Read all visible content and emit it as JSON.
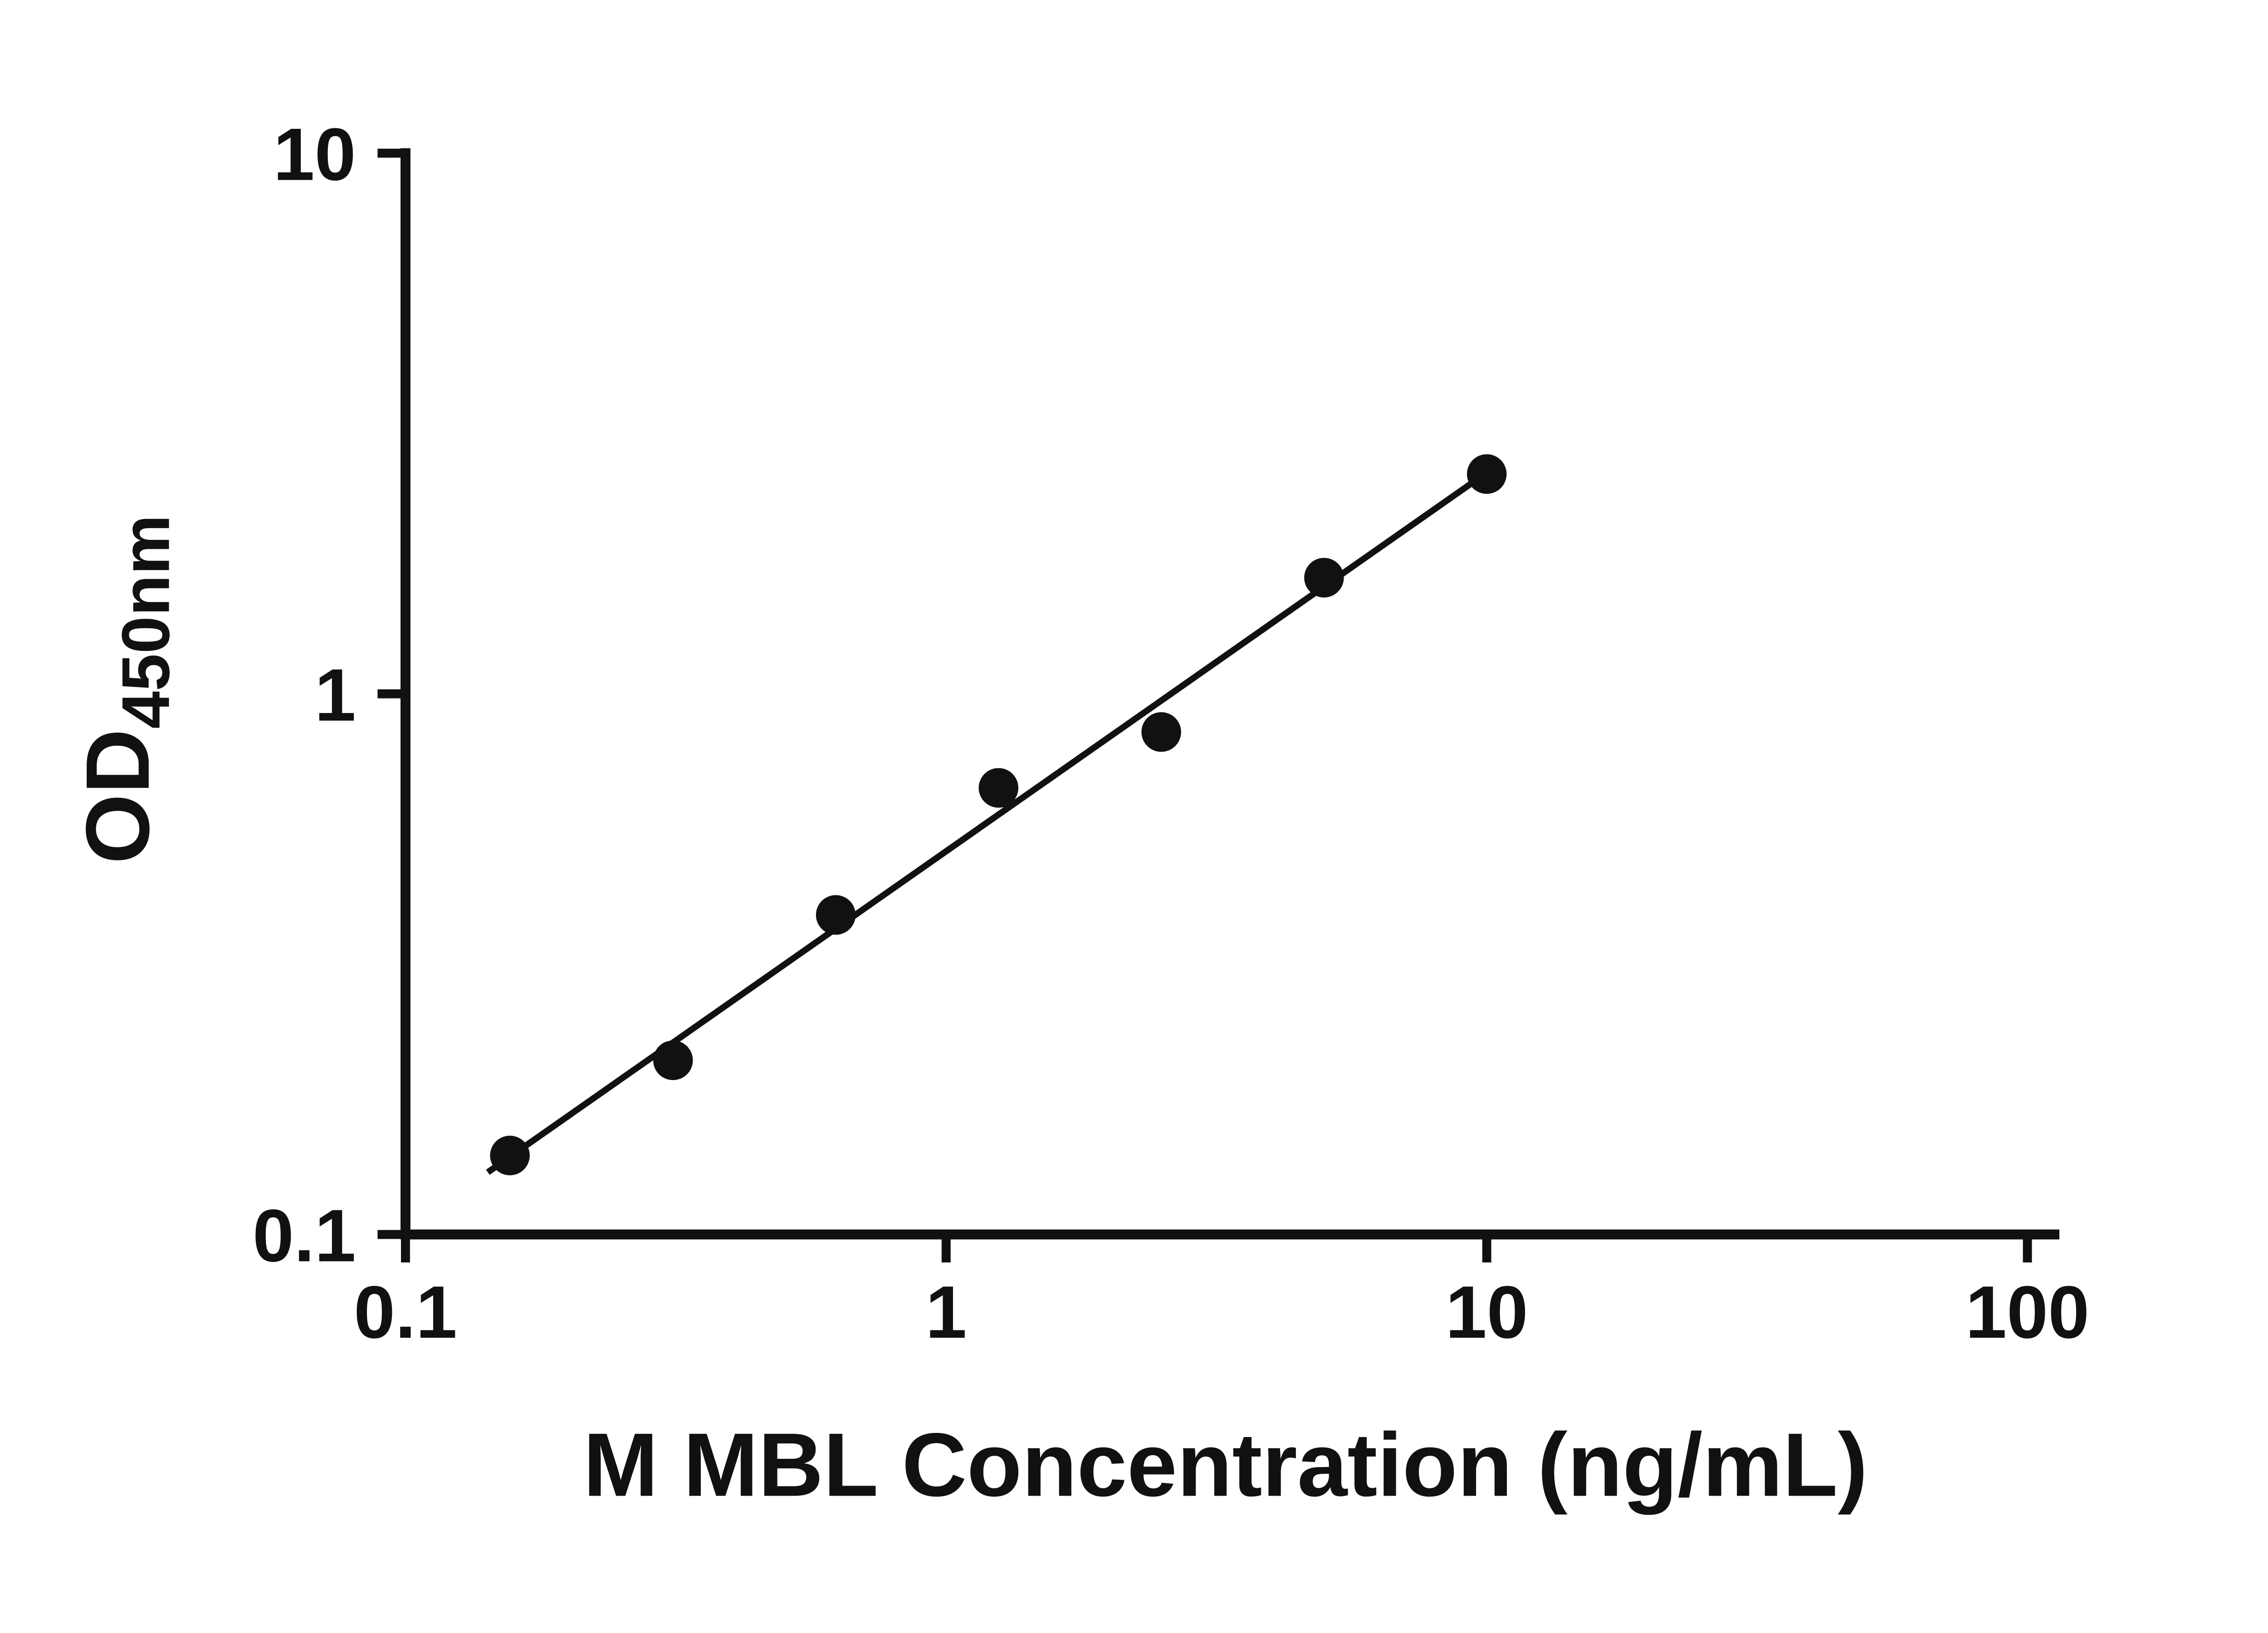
{
  "chart_data": {
    "type": "scatter",
    "title": "",
    "xlabel": "M MBL Concentration (ng/mL)",
    "ylabel_base": "OD",
    "ylabel_subscript": "450nm",
    "x_scale": "log",
    "y_scale": "log",
    "xlim": [
      0.1,
      100
    ],
    "ylim": [
      0.1,
      10
    ],
    "x_ticks": [
      0.1,
      1,
      10,
      100
    ],
    "x_tick_labels": [
      "0.1",
      "1",
      "10",
      "100"
    ],
    "y_ticks": [
      0.1,
      1,
      10
    ],
    "y_tick_labels": [
      "0.1",
      "1",
      "10"
    ],
    "grid": false,
    "legend_position": "none",
    "marker_color": "#111111",
    "line_color": "#111111",
    "axis_color": "#111111",
    "background_color": "#ffffff",
    "points": [
      {
        "x": 0.156,
        "y": 0.14
      },
      {
        "x": 0.3125,
        "y": 0.21
      },
      {
        "x": 0.625,
        "y": 0.39
      },
      {
        "x": 1.25,
        "y": 0.67
      },
      {
        "x": 2.5,
        "y": 0.85
      },
      {
        "x": 5.0,
        "y": 1.64
      },
      {
        "x": 10.0,
        "y": 2.55
      }
    ],
    "trend_line": {
      "fit": "power (linear in log-log)",
      "log_slope": 0.7004,
      "log_intercept": -0.2912,
      "x_start": 0.142,
      "x_end": 10.2
    }
  }
}
